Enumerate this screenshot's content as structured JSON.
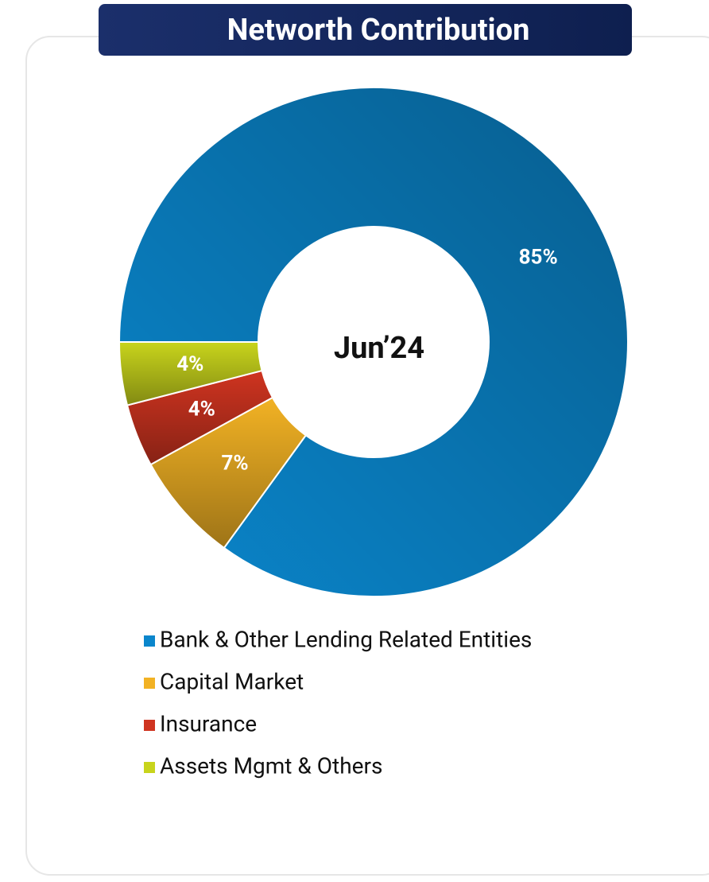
{
  "chart_data": {
    "type": "donut",
    "title": "Networth Contribution",
    "center_label": "Jun’24",
    "categories": [
      "Bank & Other Lending Related Entities",
      "Capital Market",
      "Insurance",
      "Assets Mgmt & Others"
    ],
    "values": [
      85,
      7,
      4,
      4
    ],
    "value_labels": [
      "85%",
      "7%",
      "4%",
      "4%"
    ],
    "colors": [
      "#0a86cc",
      "#f2b224",
      "#cf3420",
      "#c8d41c"
    ],
    "legend": "bottom"
  }
}
